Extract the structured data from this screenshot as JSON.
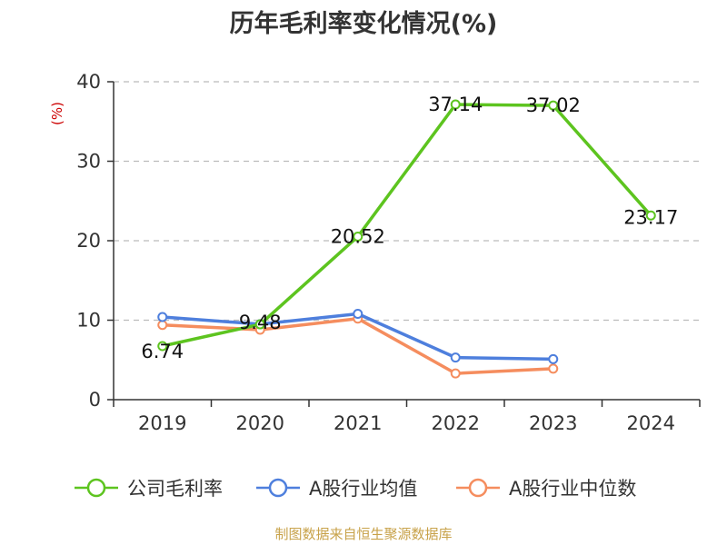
{
  "title": "历年毛利率变化情况(%)",
  "source_note": "制图数据来自恒生聚源数据库",
  "chart_data": {
    "type": "line",
    "title": "历年毛利率变化情况(%)",
    "xlabel": "",
    "ylabel": "(%)",
    "categories": [
      "2019",
      "2020",
      "2021",
      "2022",
      "2023",
      "2024"
    ],
    "ylim": [
      0,
      40
    ],
    "yticks": [
      0,
      10,
      20,
      30,
      40
    ],
    "grid": true,
    "legend_position": "bottom",
    "series": [
      {
        "name": "公司毛利率",
        "color": "#5dc41f",
        "values": [
          6.74,
          9.48,
          20.52,
          37.14,
          37.02,
          23.17
        ],
        "labels": [
          "6.74",
          "9.48",
          "20.52",
          "37.14",
          "37.02",
          "23.17"
        ]
      },
      {
        "name": "A股行业均值",
        "color": "#4e7fdd",
        "values": [
          10.4,
          9.5,
          10.8,
          5.3,
          5.1,
          null
        ]
      },
      {
        "name": "A股行业中位数",
        "color": "#f58d5e",
        "values": [
          9.4,
          8.8,
          10.2,
          3.3,
          3.9,
          null
        ]
      }
    ]
  }
}
